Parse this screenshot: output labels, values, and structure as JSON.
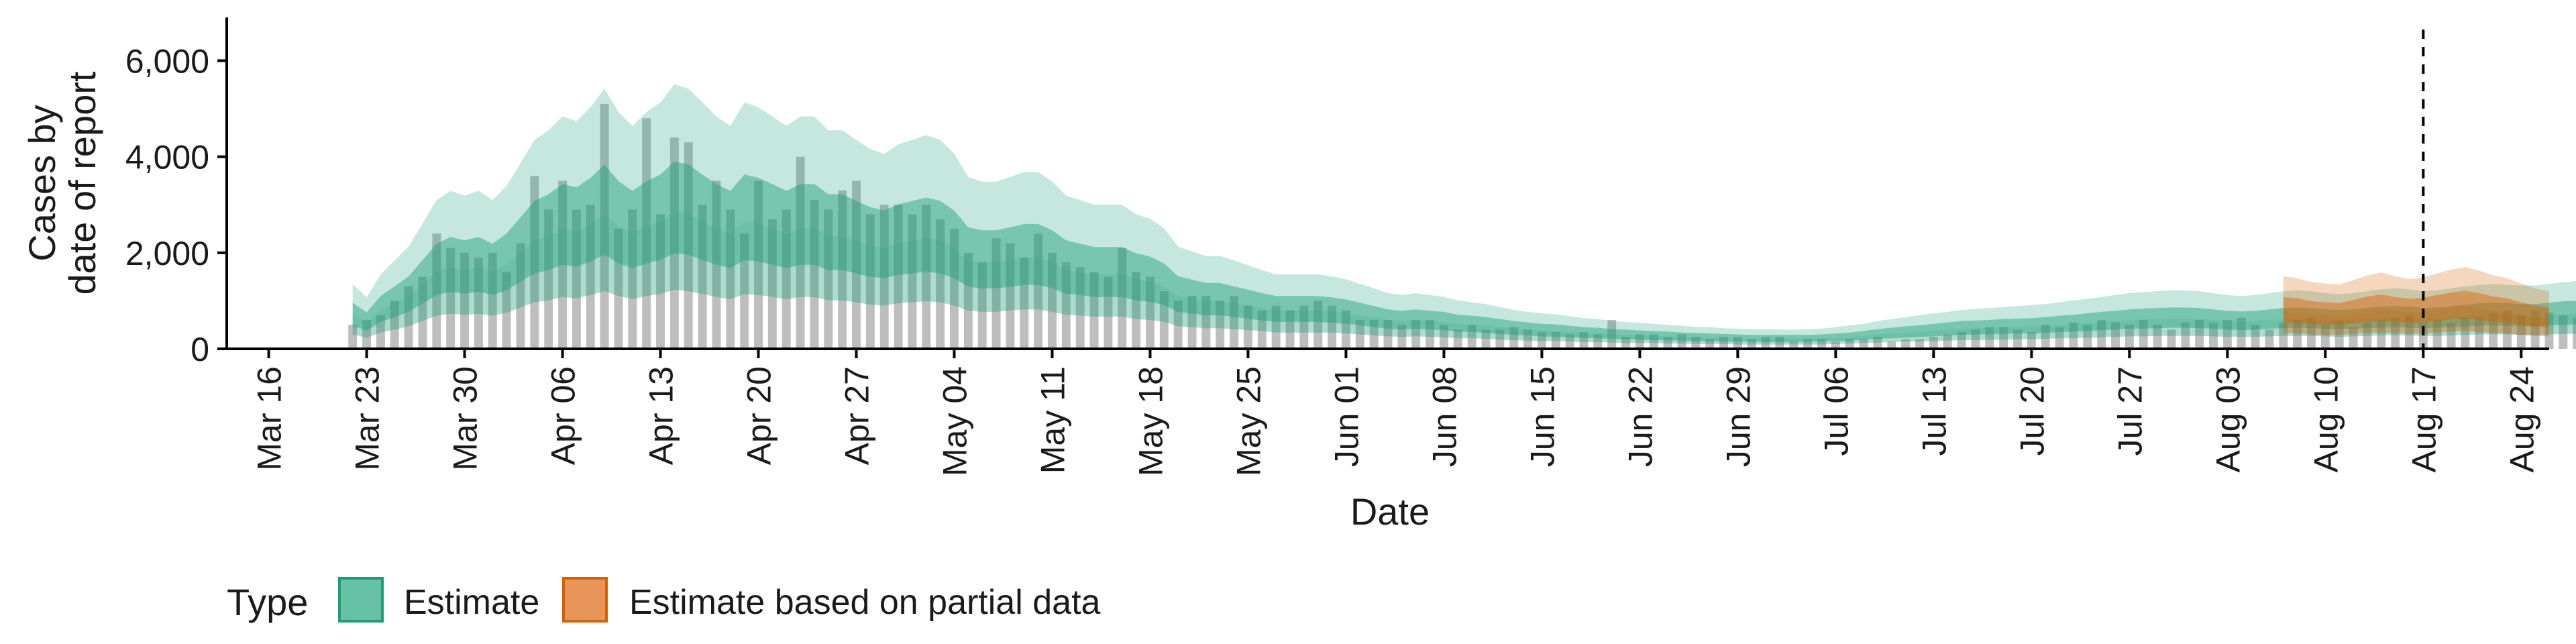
{
  "chart_data": {
    "type": "bar",
    "xlabel": "Date",
    "ylabel_lines": [
      "Cases by",
      "date of report"
    ],
    "ylim": [
      0,
      6900
    ],
    "xlim": [
      "2020-03-13",
      "2020-08-26"
    ],
    "y_ticks": [
      0,
      2000,
      4000,
      6000
    ],
    "y_tick_labels": [
      "0",
      "2,000",
      "4,000",
      "6,000"
    ],
    "x_ticks": [
      "2020-03-16",
      "2020-03-23",
      "2020-03-30",
      "2020-04-06",
      "2020-04-13",
      "2020-04-20",
      "2020-04-27",
      "2020-05-04",
      "2020-05-11",
      "2020-05-18",
      "2020-05-25",
      "2020-06-01",
      "2020-06-08",
      "2020-06-15",
      "2020-06-22",
      "2020-06-29",
      "2020-07-06",
      "2020-07-13",
      "2020-07-20",
      "2020-07-27",
      "2020-08-03",
      "2020-08-10",
      "2020-08-17",
      "2020-08-24"
    ],
    "x_tick_labels": [
      "Mar 16",
      "Mar 23",
      "Mar 30",
      "Apr 06",
      "Apr 13",
      "Apr 20",
      "Apr 27",
      "May 04",
      "May 11",
      "May 18",
      "May 25",
      "Jun 01",
      "Jun 08",
      "Jun 15",
      "Jun 22",
      "Jun 29",
      "Jul 06",
      "Jul 13",
      "Jul 20",
      "Jul 27",
      "Aug 03",
      "Aug 10",
      "Aug 17",
      "Aug 24"
    ],
    "reference_line_date": "2020-08-17",
    "legend_placement": "bottom",
    "grid": false,
    "bars": {
      "start_date": "2020-03-22",
      "color": "#b3b3b3",
      "values": [
        500,
        600,
        700,
        1000,
        1300,
        1500,
        2400,
        2100,
        2000,
        1900,
        2000,
        1600,
        2200,
        3600,
        2900,
        3500,
        2900,
        3000,
        5100,
        2500,
        2900,
        4800,
        2800,
        4400,
        4300,
        3000,
        3500,
        2900,
        2400,
        3500,
        2700,
        2900,
        4000,
        3100,
        2900,
        3300,
        3500,
        2800,
        3000,
        3000,
        2800,
        3000,
        2700,
        2500,
        2000,
        1800,
        2300,
        2200,
        1900,
        2400,
        2000,
        1800,
        1700,
        1600,
        1500,
        2100,
        1600,
        1500,
        1200,
        1000,
        1100,
        1100,
        1000,
        1100,
        900,
        800,
        900,
        800,
        900,
        1000,
        900,
        800,
        600,
        600,
        600,
        500,
        600,
        600,
        500,
        400,
        500,
        400,
        400,
        450,
        400,
        350,
        350,
        300,
        350,
        300,
        600,
        250,
        300,
        300,
        250,
        300,
        250,
        200,
        250,
        250,
        200,
        250,
        250,
        150,
        200,
        200,
        150,
        200,
        200,
        250,
        150,
        200,
        200,
        250,
        300,
        350,
        400,
        450,
        450,
        400,
        350,
        500,
        450,
        550,
        500,
        600,
        550,
        500,
        600,
        500,
        400,
        550,
        600,
        550,
        600,
        650,
        500,
        400,
        550,
        600,
        650,
        500,
        600,
        450,
        550,
        600,
        650,
        700,
        550,
        600,
        550,
        650,
        650,
        750,
        800,
        700,
        800,
        750,
        700,
        650,
        700,
        650,
        600,
        800,
        750,
        700,
        900,
        750,
        850,
        800,
        750,
        700,
        600,
        700
      ],
      "partial_from_date": "2020-08-07"
    },
    "series": [
      {
        "name": "Estimate",
        "color": "#1b9e77",
        "start_date": "2020-03-22",
        "median": [
          700,
          550,
          800,
          950,
          1100,
          1350,
          1600,
          1700,
          1650,
          1700,
          1600,
          1750,
          2000,
          2250,
          2350,
          2500,
          2450,
          2600,
          2800,
          2550,
          2400,
          2550,
          2650,
          2850,
          2800,
          2650,
          2500,
          2400,
          2650,
          2600,
          2500,
          2400,
          2500,
          2500,
          2350,
          2350,
          2250,
          2150,
          2100,
          2200,
          2250,
          2300,
          2250,
          2100,
          1850,
          1800,
          1800,
          1850,
          1900,
          1900,
          1800,
          1650,
          1600,
          1550,
          1550,
          1550,
          1450,
          1400,
          1300,
          1100,
          1050,
          1000,
          1000,
          950,
          900,
          850,
          800,
          800,
          800,
          800,
          780,
          750,
          700,
          650,
          600,
          580,
          600,
          580,
          560,
          520,
          500,
          480,
          450,
          420,
          400,
          380,
          370,
          350,
          330,
          320,
          300,
          290,
          280,
          270,
          260,
          250,
          240,
          230,
          225,
          220,
          215,
          210,
          210,
          210,
          215,
          220,
          230,
          250,
          270,
          300,
          320,
          340,
          360,
          380,
          400,
          420,
          430,
          440,
          450,
          460,
          470,
          480,
          500,
          520,
          540,
          560,
          580,
          600,
          610,
          620,
          630,
          630,
          620,
          600,
          580,
          570,
          580,
          600,
          620,
          630,
          620,
          600,
          590,
          600,
          620,
          640,
          650,
          640,
          620,
          630,
          650,
          670,
          690,
          700,
          690,
          680,
          680,
          700,
          720,
          730,
          720,
          710,
          720,
          740,
          760,
          770,
          760,
          750,
          750,
          760,
          780,
          800,
          780,
          760,
          760,
          780,
          800,
          820
        ],
        "p25": [
          480,
          380,
          560,
          660,
          770,
          940,
          1120,
          1190,
          1150,
          1190,
          1120,
          1220,
          1400,
          1570,
          1640,
          1750,
          1710,
          1820,
          1960,
          1780,
          1680,
          1780,
          1850,
          1990,
          1960,
          1850,
          1750,
          1680,
          1850,
          1820,
          1750,
          1680,
          1750,
          1750,
          1640,
          1640,
          1570,
          1500,
          1470,
          1540,
          1570,
          1610,
          1570,
          1470,
          1290,
          1260,
          1260,
          1290,
          1330,
          1330,
          1260,
          1150,
          1120,
          1080,
          1080,
          1080,
          1010,
          980,
          910,
          770,
          730,
          700,
          700,
          660,
          630,
          590,
          560,
          560,
          560,
          560,
          540,
          520,
          490,
          450,
          420,
          400,
          420,
          400,
          390,
          360,
          350,
          330,
          310,
          290,
          280,
          260,
          250,
          240,
          230,
          220,
          210,
          200,
          190,
          180,
          180,
          170,
          160,
          160,
          150,
          150,
          150,
          140,
          140,
          140,
          150,
          150,
          160,
          170,
          190,
          210,
          220,
          230,
          250,
          260,
          280,
          290,
          300,
          300,
          310,
          320,
          320,
          330,
          350,
          360,
          370,
          390,
          400,
          420,
          420,
          430,
          440,
          440,
          430,
          420,
          400,
          390,
          400,
          420,
          430,
          440,
          430,
          420,
          410,
          420,
          430,
          440,
          450,
          440,
          430,
          440,
          450,
          460,
          480,
          490,
          480,
          470,
          470,
          490,
          500,
          510,
          500,
          490,
          500,
          510,
          530,
          540,
          530,
          520,
          520,
          530,
          540,
          560,
          540,
          530,
          530,
          540,
          560,
          570
        ],
        "p75": [
          960,
          760,
          1100,
          1300,
          1510,
          1850,
          2190,
          2330,
          2260,
          2330,
          2190,
          2400,
          2740,
          3080,
          3220,
          3430,
          3360,
          3560,
          3840,
          3490,
          3290,
          3490,
          3630,
          3900,
          3840,
          3630,
          3430,
          3290,
          3630,
          3560,
          3430,
          3290,
          3430,
          3430,
          3220,
          3220,
          3080,
          2950,
          2880,
          3010,
          3080,
          3150,
          3080,
          2880,
          2530,
          2470,
          2470,
          2530,
          2600,
          2600,
          2470,
          2260,
          2190,
          2120,
          2120,
          2120,
          1990,
          1920,
          1780,
          1510,
          1440,
          1370,
          1370,
          1300,
          1230,
          1160,
          1100,
          1100,
          1100,
          1100,
          1070,
          1030,
          960,
          890,
          820,
          790,
          820,
          790,
          770,
          710,
          690,
          660,
          620,
          580,
          550,
          520,
          510,
          480,
          450,
          440,
          410,
          400,
          380,
          370,
          360,
          340,
          330,
          320,
          310,
          300,
          290,
          290,
          290,
          290,
          290,
          300,
          320,
          340,
          370,
          410,
          440,
          470,
          490,
          520,
          550,
          580,
          590,
          600,
          620,
          630,
          640,
          660,
          690,
          710,
          740,
          770,
          790,
          820,
          840,
          850,
          860,
          860,
          850,
          820,
          790,
          780,
          790,
          820,
          850,
          860,
          850,
          820,
          810,
          820,
          850,
          880,
          890,
          880,
          850,
          860,
          890,
          920,
          950,
          960,
          950,
          930,
          930,
          960,
          990,
          1000,
          990,
          970,
          990,
          1010,
          1040,
          1050,
          1040,
          1030,
          1030,
          1040,
          1070,
          1100,
          1070,
          1040,
          1040,
          1070,
          1100,
          1120
        ],
        "p05": [
          300,
          230,
          340,
          400,
          470,
          580,
          690,
          730,
          710,
          730,
          690,
          750,
          860,
          970,
          1010,
          1080,
          1050,
          1120,
          1200,
          1100,
          1030,
          1100,
          1140,
          1230,
          1200,
          1140,
          1080,
          1030,
          1140,
          1120,
          1080,
          1030,
          1080,
          1080,
          1010,
          1010,
          970,
          920,
          900,
          950,
          970,
          990,
          970,
          900,
          800,
          770,
          770,
          800,
          820,
          820,
          770,
          710,
          690,
          670,
          670,
          670,
          620,
          600,
          560,
          470,
          450,
          430,
          430,
          410,
          390,
          370,
          340,
          340,
          340,
          340,
          340,
          320,
          300,
          280,
          260,
          250,
          260,
          250,
          240,
          220,
          220,
          210,
          190,
          180,
          170,
          160,
          160,
          150,
          140,
          140,
          130,
          120,
          120,
          120,
          110,
          110,
          100,
          100,
          100,
          90,
          90,
          90,
          90,
          90,
          90,
          90,
          100,
          110,
          120,
          130,
          140,
          150,
          150,
          160,
          170,
          180,
          180,
          190,
          190,
          200,
          200,
          210,
          220,
          220,
          230,
          240,
          250,
          260,
          260,
          270,
          270,
          270,
          270,
          260,
          250,
          250,
          250,
          260,
          270,
          270,
          270,
          260,
          250,
          260,
          270,
          280,
          280,
          280,
          270,
          270,
          280,
          290,
          300,
          300,
          300,
          290,
          290,
          300,
          310,
          310,
          310,
          310,
          310,
          320,
          330,
          330,
          330,
          320,
          320,
          330,
          340,
          340,
          340,
          330,
          330,
          340,
          340,
          350
        ],
        "p95": [
          1350,
          1070,
          1550,
          1840,
          2130,
          2610,
          3100,
          3290,
          3190,
          3290,
          3100,
          3390,
          3870,
          4350,
          4550,
          4840,
          4740,
          5030,
          5420,
          4930,
          4640,
          4930,
          5130,
          5510,
          5420,
          5130,
          4840,
          4640,
          5130,
          5030,
          4840,
          4640,
          4840,
          4840,
          4550,
          4550,
          4350,
          4160,
          4060,
          4260,
          4350,
          4450,
          4350,
          4060,
          3580,
          3480,
          3480,
          3580,
          3680,
          3680,
          3480,
          3190,
          3100,
          3000,
          3000,
          3000,
          2800,
          2710,
          2510,
          2130,
          2030,
          1930,
          1930,
          1840,
          1740,
          1640,
          1550,
          1550,
          1550,
          1550,
          1510,
          1450,
          1350,
          1260,
          1160,
          1120,
          1160,
          1120,
          1080,
          1010,
          970,
          930,
          870,
          810,
          770,
          740,
          720,
          680,
          640,
          620,
          580,
          560,
          540,
          520,
          500,
          480,
          460,
          450,
          430,
          420,
          410,
          410,
          400,
          400,
          410,
          420,
          450,
          490,
          520,
          580,
          620,
          660,
          700,
          740,
          770,
          810,
          830,
          850,
          870,
          890,
          910,
          930,
          970,
          1010,
          1040,
          1080,
          1120,
          1160,
          1180,
          1200,
          1220,
          1220,
          1200,
          1160,
          1120,
          1100,
          1120,
          1160,
          1200,
          1220,
          1200,
          1160,
          1140,
          1160,
          1200,
          1240,
          1260,
          1240,
          1200,
          1220,
          1260,
          1300,
          1330,
          1350,
          1330,
          1320,
          1320,
          1350,
          1390,
          1410,
          1390,
          1370,
          1390,
          1430,
          1470,
          1490,
          1470,
          1450,
          1450,
          1470,
          1510,
          1550,
          1510,
          1470,
          1470,
          1510,
          1550,
          1590
        ]
      },
      {
        "name": "Estimate based on partial data",
        "color": "#d95f02",
        "start_date": "2020-08-07",
        "median": [
          780,
          760,
          720,
          700,
          690,
          740,
          790,
          820,
          780,
          750,
          770,
          810,
          850,
          880,
          840,
          790,
          760,
          700,
          650,
          620
        ],
        "p25": [
          560,
          540,
          520,
          500,
          490,
          530,
          560,
          590,
          560,
          540,
          550,
          580,
          610,
          630,
          600,
          570,
          540,
          500,
          460,
          440
        ],
        "p75": [
          1080,
          1050,
          990,
          970,
          950,
          1020,
          1090,
          1130,
          1080,
          1040,
          1060,
          1120,
          1170,
          1210,
          1160,
          1090,
          1050,
          970,
          900,
          860
        ],
        "p05": [
          330,
          320,
          300,
          290,
          290,
          310,
          330,
          340,
          330,
          310,
          320,
          340,
          360,
          370,
          350,
          330,
          320,
          290,
          270,
          260
        ],
        "p95": [
          1510,
          1470,
          1390,
          1360,
          1340,
          1430,
          1530,
          1590,
          1510,
          1450,
          1490,
          1570,
          1650,
          1700,
          1630,
          1530,
          1470,
          1360,
          1260,
          1200
        ]
      }
    ],
    "legend": {
      "title": "Type",
      "entries": [
        {
          "label": "Estimate",
          "fill": "#66c2a5",
          "stroke": "#1b9e77"
        },
        {
          "label": "Estimate based on partial data",
          "fill": "#e8955a",
          "stroke": "#d95f02"
        }
      ]
    }
  }
}
